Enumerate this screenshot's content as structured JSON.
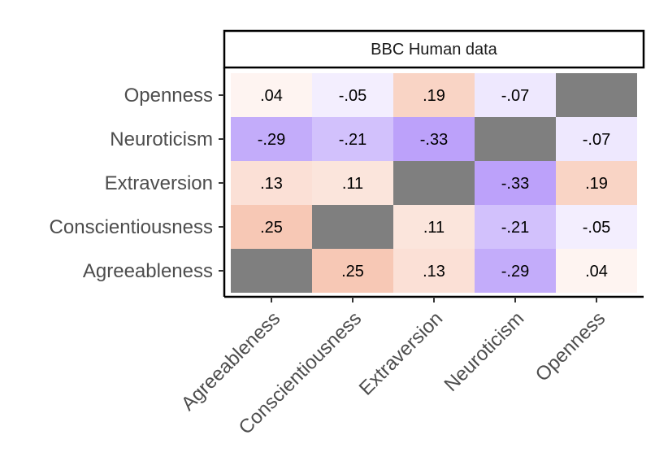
{
  "chart_data": {
    "type": "heatmap",
    "facet_title": "BBC Human data",
    "x_categories": [
      "Agreeableness",
      "Conscientiousness",
      "Extraversion",
      "Neuroticism",
      "Openness"
    ],
    "y_categories": [
      "Agreeableness",
      "Conscientiousness",
      "Extraversion",
      "Neuroticism",
      "Openness"
    ],
    "values": [
      [
        null,
        0.25,
        0.13,
        -0.29,
        0.04
      ],
      [
        0.25,
        null,
        0.11,
        -0.21,
        -0.05
      ],
      [
        0.13,
        0.11,
        null,
        -0.33,
        0.19
      ],
      [
        -0.29,
        -0.21,
        -0.33,
        null,
        -0.07
      ],
      [
        0.04,
        -0.05,
        0.19,
        -0.07,
        null
      ]
    ],
    "labels": [
      [
        "",
        ".25",
        ".13",
        "-.29",
        ".04"
      ],
      [
        ".25",
        "",
        ".11",
        "-.21",
        "-.05"
      ],
      [
        ".13",
        ".11",
        "",
        "-.33",
        ".19"
      ],
      [
        "-.29",
        "-.21",
        "-.33",
        "",
        "-.07"
      ],
      [
        ".04",
        "-.05",
        ".19",
        "-.07",
        ""
      ]
    ],
    "diagonal_color": "#7f7f7f",
    "positive_color": "#ef8a62",
    "negative_color": "#8a5cf6",
    "neutral_color": "#ffffff",
    "xlabel": "",
    "ylabel": ""
  }
}
